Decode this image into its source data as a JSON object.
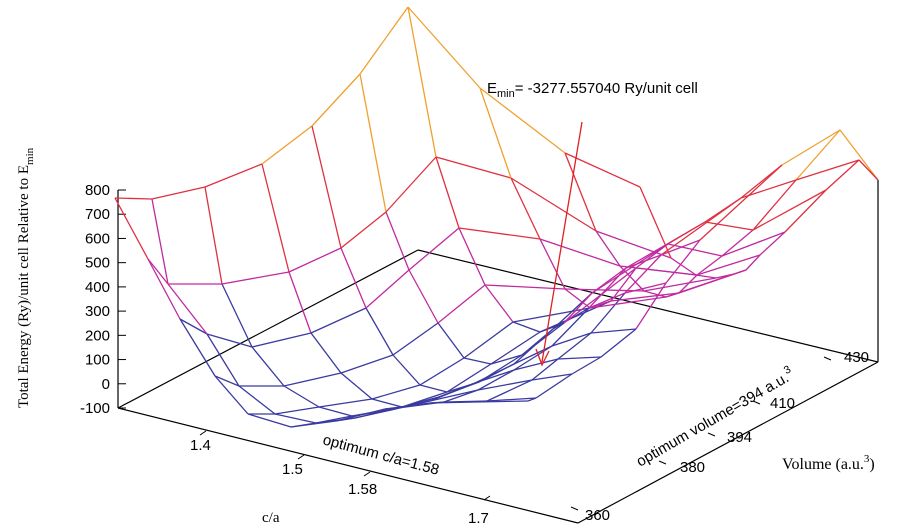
{
  "chart_data": {
    "type": "surface",
    "zlabel_main": "Total Energy (Ry)/unit cell Relative to E",
    "zlabel_sub": "min",
    "xlabel": "c/a",
    "ylabel_main": "Volume (a.u.",
    "ylabel_sup": "3",
    "ylabel_close": ")",
    "z_ticks": [
      "800",
      "700",
      "600",
      "500",
      "400",
      "300",
      "200",
      "100",
      "0",
      "-100"
    ],
    "x_ticks": [
      "1.4",
      "1.5",
      "1.58",
      "1.7"
    ],
    "y_ticks": [
      "360",
      "380",
      "394",
      "410",
      "430"
    ],
    "annotation_emin": {
      "prefix": "E",
      "sub": "min",
      "text": "= -3277.557040 Ry/unit cell"
    },
    "annotation_ca": "optimum c/a=1.58",
    "annotation_vol_main": "optimum volume=394 a.u.",
    "annotation_vol_sup": "3",
    "colors": {
      "high": "#f0a030",
      "upper": "#e03040",
      "middle": "#c02aa0",
      "low": "#3a3aa0",
      "arrow": "#e02020",
      "axis": "#000000"
    }
  }
}
